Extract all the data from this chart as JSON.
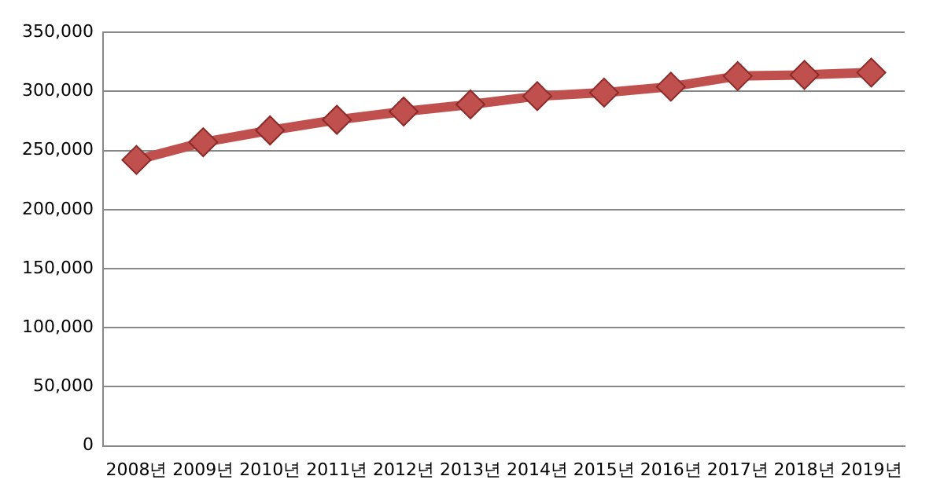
{
  "chart_data": {
    "type": "line",
    "categories": [
      "2008년",
      "2009년",
      "2010년",
      "2011년",
      "2012년",
      "2013년",
      "2014년",
      "2015년",
      "2016년",
      "2017년",
      "2018년",
      "2019년"
    ],
    "series": [
      {
        "color": "#c0504d",
        "values": [
          242000,
          257000,
          267000,
          276000,
          283000,
          289000,
          296000,
          299000,
          304000,
          313000,
          314000,
          316000
        ]
      }
    ],
    "ylim": [
      0,
      350000
    ],
    "yticks": [
      0,
      {
        "value": 50000,
        "label": "50,000"
      },
      {
        "value": 100000,
        "label": "100,000"
      },
      {
        "value": 150000,
        "label": "150,000"
      },
      {
        "value": 200000,
        "label": "200,000"
      },
      {
        "value": 250000,
        "label": "250,000"
      },
      {
        "value": 300000,
        "label": "300,000"
      },
      {
        "value": 350000,
        "label": "350,000"
      }
    ],
    "grid": "y",
    "legend": false,
    "marker": "diamond",
    "line_style": "solid"
  }
}
